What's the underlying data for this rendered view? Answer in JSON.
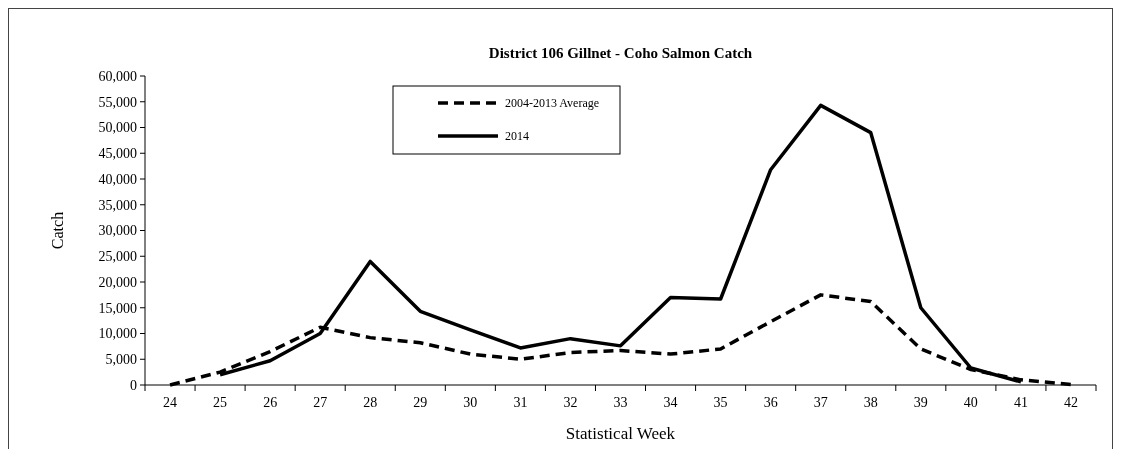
{
  "chart_data": {
    "type": "line",
    "title": "District 106 Gillnet  - Coho Salmon Catch",
    "xlabel": "Statistical Week",
    "ylabel": "Catch",
    "categories": [
      "24",
      "25",
      "26",
      "27",
      "28",
      "29",
      "30",
      "31",
      "32",
      "33",
      "34",
      "35",
      "36",
      "37",
      "38",
      "39",
      "40",
      "41",
      "42"
    ],
    "series": [
      {
        "name": "2004-2013 Average",
        "color": "#000000",
        "line_style": "dashed",
        "values": [
          0,
          2500,
          6500,
          11200,
          9200,
          8200,
          6000,
          5000,
          6300,
          6700,
          6000,
          7000,
          12300,
          17500,
          16200,
          7000,
          3000,
          1000,
          100
        ]
      },
      {
        "name": "2014",
        "color": "#000000",
        "line_style": "solid",
        "values": [
          null,
          2000,
          4700,
          10000,
          24000,
          14300,
          10700,
          7200,
          9000,
          7600,
          17000,
          16700,
          41800,
          54300,
          49000,
          15000,
          3300,
          600,
          null
        ]
      }
    ],
    "ylim": [
      0,
      60000
    ],
    "yticks": [
      {
        "value": 0,
        "label": "0"
      },
      {
        "value": 5000,
        "label": "5,000"
      },
      {
        "value": 10000,
        "label": "10,000"
      },
      {
        "value": 15000,
        "label": "15,000"
      },
      {
        "value": 20000,
        "label": "20,000"
      },
      {
        "value": 25000,
        "label": "25,000"
      },
      {
        "value": 30000,
        "label": "30,000"
      },
      {
        "value": 35000,
        "label": "35,000"
      },
      {
        "value": 40000,
        "label": "40,000"
      },
      {
        "value": 45000,
        "label": "45,000"
      },
      {
        "value": 50000,
        "label": "50,000"
      },
      {
        "value": 55000,
        "label": "55,000"
      },
      {
        "value": 60000,
        "label": "60,000"
      }
    ],
    "legend": "top",
    "grid": false
  }
}
